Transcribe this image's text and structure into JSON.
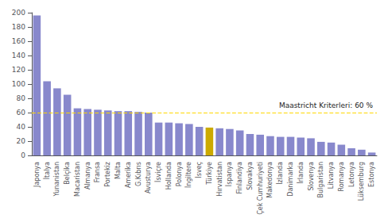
{
  "chart_data": {
    "type": "bar",
    "categories": [
      "Japonya",
      "İtalya",
      "Yunanistan",
      "Belçika",
      "Macaristan",
      "Almanya",
      "Fransa",
      "Portekiz",
      "Malta",
      "Amerika",
      "G.Kıbrıs",
      "Avusturya",
      "İsviçre",
      "Hollanda",
      "Polonya",
      "İngiltere",
      "İsveç",
      "Türkiye",
      "Hırvatistan",
      "İspanya",
      "Finlandiya",
      "Slovakya",
      "Çek Cumhuriyeti",
      "Makedonya",
      "İzlanda",
      "Danimarka",
      "İrlanda",
      "Slovenya",
      "Bulgaristan",
      "Litvanya",
      "Romanya",
      "Letonya",
      "Lüksemburg",
      "Estonya"
    ],
    "values": [
      196,
      104,
      94,
      85,
      66,
      65,
      64,
      63,
      62,
      62,
      61,
      60,
      46,
      46,
      45,
      44,
      40,
      39,
      38,
      37,
      35,
      30,
      29,
      27,
      26,
      26,
      25,
      24,
      19,
      18,
      15,
      10,
      8,
      4
    ],
    "colors": [
      "#8888cc",
      "#8888cc",
      "#8888cc",
      "#8888cc",
      "#8888cc",
      "#8888cc",
      "#8888cc",
      "#8888cc",
      "#8888cc",
      "#8888cc",
      "#8888cc",
      "#8888cc",
      "#8888cc",
      "#8888cc",
      "#8888cc",
      "#8888cc",
      "#8888cc",
      "#ccaa00",
      "#8888cc",
      "#8888cc",
      "#8888cc",
      "#8888cc",
      "#8888cc",
      "#8888cc",
      "#8888cc",
      "#8888cc",
      "#8888cc",
      "#8888cc",
      "#8888cc",
      "#8888cc",
      "#8888cc",
      "#8888cc",
      "#8888cc",
      "#8888cc"
    ],
    "reference_line": {
      "y": 60,
      "color": "#FFD700",
      "line_style": "dashed",
      "annotation": "Maastricht Kriterleri: 60 %"
    },
    "ylim": [
      0,
      200
    ],
    "yticks": [
      0,
      20,
      40,
      60,
      80,
      100,
      120,
      140,
      160,
      180,
      200
    ],
    "grid": false
  }
}
